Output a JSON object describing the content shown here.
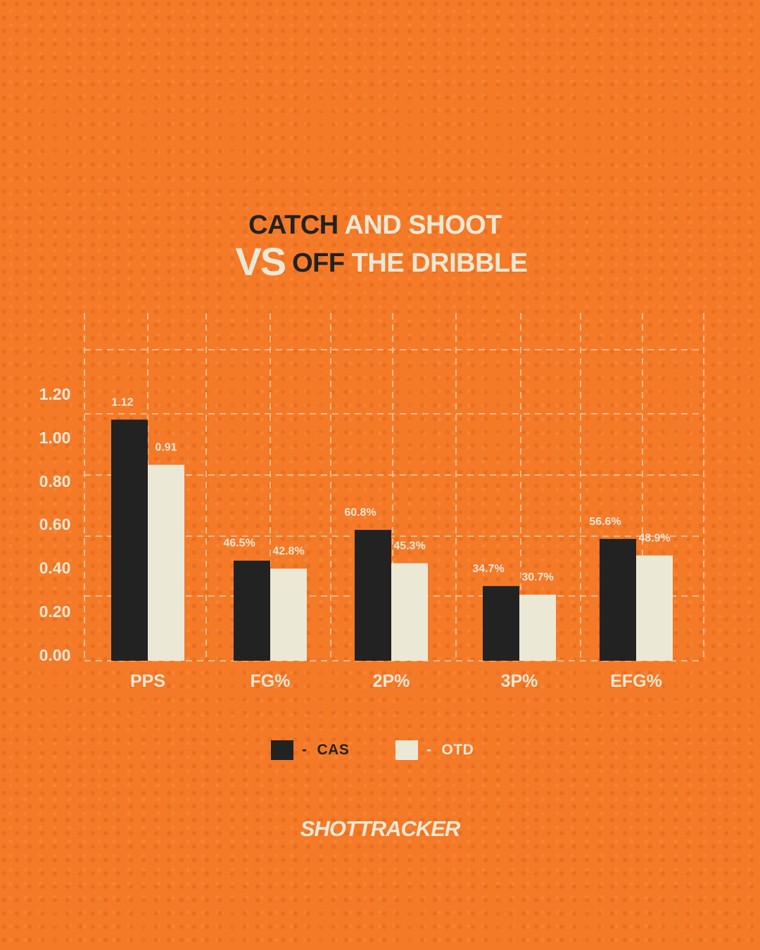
{
  "title": {
    "line1_dark": "CATCH",
    "line1_light": "AND SHOOT",
    "line2_vs": "VS",
    "line2_dark": "OFF",
    "line2_light": "THE DRIBBLE"
  },
  "colors": {
    "background": "#f57a28",
    "cas": "#222222",
    "otd": "#ece8d6",
    "grid": "#f2d9bf"
  },
  "chart_data": {
    "type": "bar",
    "categories": [
      "PPS",
      "FG%",
      "2P%",
      "3P%",
      "EFG%"
    ],
    "yticks": [
      "0.00",
      "0.20",
      "0.40",
      "0.60",
      "0.80",
      "1.00",
      "1.20"
    ],
    "ylim": [
      0,
      1.2
    ],
    "grid": true,
    "legend_position": "bottom",
    "series": [
      {
        "name": "CAS",
        "values": [
          1.12,
          0.465,
          0.608,
          0.347,
          0.566
        ],
        "labels": [
          "1.12",
          "46.5%",
          "60.8%",
          "34.7%",
          "56.6%"
        ]
      },
      {
        "name": "OTD",
        "values": [
          0.91,
          0.428,
          0.453,
          0.307,
          0.489
        ],
        "labels": [
          "0.91",
          "42.8%",
          "45.3%",
          "30.7%",
          "48.9%"
        ]
      }
    ]
  },
  "legend": {
    "items": [
      {
        "dash": "-",
        "label": "CAS"
      },
      {
        "dash": "-",
        "label": "OTD"
      }
    ]
  },
  "logo": "SHOTTRACKER"
}
